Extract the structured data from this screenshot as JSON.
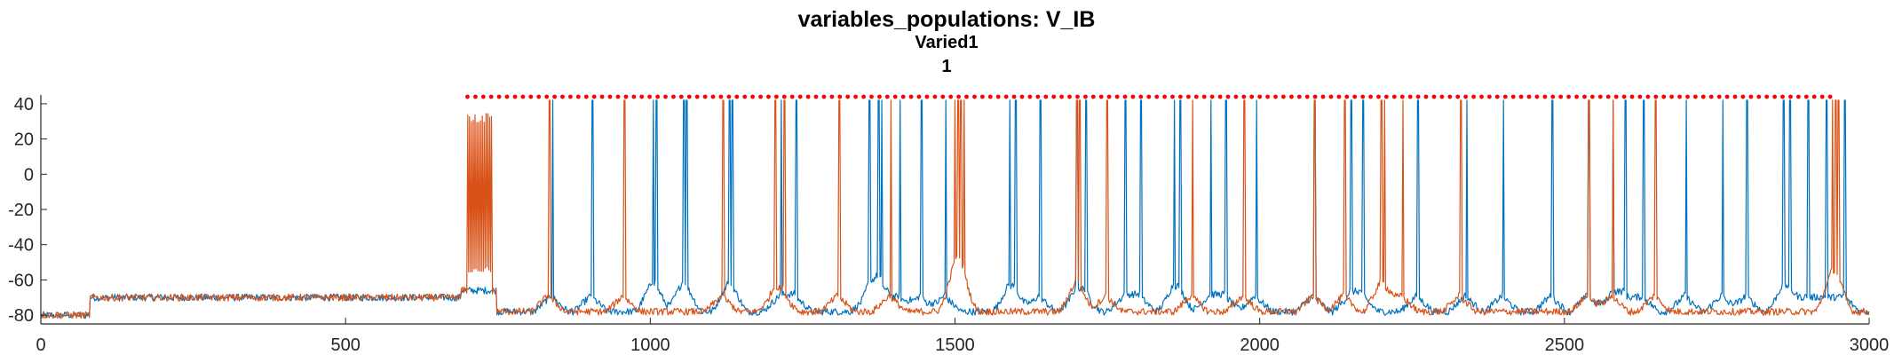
{
  "chart_data": {
    "type": "line",
    "title": "variables_populations: V_IB",
    "subtitle": "Varied1",
    "subtitle2": "1",
    "xlabel": "",
    "ylabel": "",
    "xlim": [
      0,
      3000
    ],
    "ylim": [
      -85,
      45
    ],
    "xticks": [
      0,
      500,
      1000,
      1500,
      2000,
      2500,
      3000
    ],
    "yticks": [
      40,
      20,
      0,
      -20,
      -40,
      -60,
      -80
    ],
    "grid": false,
    "legend": "none",
    "colors": {
      "blue": "#0072BD",
      "orange": "#D95319",
      "marker": "#FF0000",
      "axis": "#262626"
    },
    "baseline_segments": [
      {
        "x": [
          0,
          80
        ],
        "y": -80
      },
      {
        "x": [
          80,
          690
        ],
        "y": -70
      },
      {
        "x": [
          690,
          748
        ],
        "y": -66
      },
      {
        "x": [
          748,
          3000
        ],
        "y": -78
      }
    ],
    "series": [
      {
        "color": "#0072BD",
        "spike_times": [
          840,
          905,
          1005,
          1010,
          1055,
          1060,
          1130,
          1135,
          1215,
          1240,
          1360,
          1375,
          1380,
          1410,
          1445,
          1485,
          1590,
          1600,
          1640,
          1700,
          1715,
          1780,
          1805,
          1860,
          1870,
          1920,
          1945,
          1995,
          2090,
          2150,
          2170,
          2260,
          2340,
          2400,
          2480,
          2540,
          2580,
          2600,
          2630,
          2700,
          2760,
          2800,
          2860,
          2870,
          2900,
          2930,
          2960
        ],
        "bursts": []
      },
      {
        "color": "#D95319",
        "spike_times": [
          835,
          958,
          1120,
          1205,
          1220,
          1310,
          1395,
          1500,
          1505,
          1510,
          1515,
          1700,
          1705,
          1750,
          1890,
          1975,
          2090,
          2140,
          2200,
          2205,
          2235,
          2330,
          2540,
          2580,
          2650,
          2940,
          2945,
          2950
        ],
        "bursts": [
          {
            "x": [
              700,
              740
            ],
            "high": 32,
            "low": -54
          }
        ]
      }
    ],
    "top_markers": {
      "color": "#FF0000",
      "y": 44,
      "x_range": [
        700,
        2940
      ],
      "step": 13
    }
  }
}
